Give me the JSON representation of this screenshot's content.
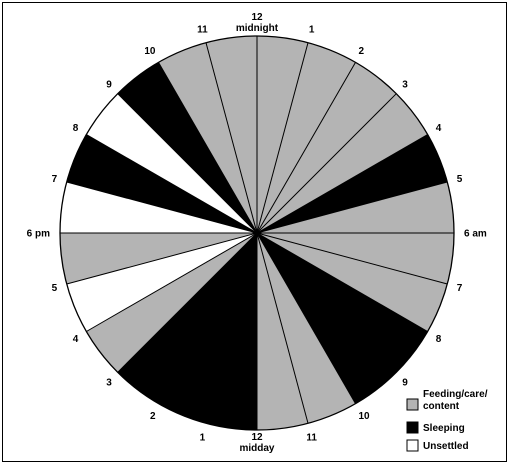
{
  "chart_data": {
    "type": "pie",
    "description_text": {},
    "clock_labels": [
      [
        "12",
        "midnight"
      ],
      [
        "1"
      ],
      [
        "2"
      ],
      [
        "3"
      ],
      [
        "4"
      ],
      [
        "5"
      ],
      [
        "6 am"
      ],
      [
        "7"
      ],
      [
        "8"
      ],
      [
        "9"
      ],
      [
        "10"
      ],
      [
        "11"
      ],
      [
        "12",
        "midday"
      ],
      [
        "1"
      ],
      [
        "2"
      ],
      [
        "3"
      ],
      [
        "4"
      ],
      [
        "5"
      ],
      [
        "6 pm"
      ],
      [
        "7"
      ],
      [
        "8"
      ],
      [
        "9"
      ],
      [
        "10"
      ],
      [
        "11"
      ]
    ],
    "segments": [
      {
        "hour_start": 0,
        "hour_end": 1,
        "state": "feeding"
      },
      {
        "hour_start": 1,
        "hour_end": 2,
        "state": "feeding"
      },
      {
        "hour_start": 2,
        "hour_end": 3,
        "state": "feeding"
      },
      {
        "hour_start": 3,
        "hour_end": 4,
        "state": "feeding"
      },
      {
        "hour_start": 4,
        "hour_end": 5,
        "state": "sleeping"
      },
      {
        "hour_start": 5,
        "hour_end": 6,
        "state": "feeding"
      },
      {
        "hour_start": 6,
        "hour_end": 7,
        "state": "feeding"
      },
      {
        "hour_start": 7,
        "hour_end": 8,
        "state": "feeding"
      },
      {
        "hour_start": 8,
        "hour_end": 10,
        "state": "sleeping"
      },
      {
        "hour_start": 10,
        "hour_end": 11,
        "state": "feeding"
      },
      {
        "hour_start": 11,
        "hour_end": 12,
        "state": "feeding"
      },
      {
        "hour_start": 12,
        "hour_end": 15,
        "state": "sleeping"
      },
      {
        "hour_start": 15,
        "hour_end": 16,
        "state": "feeding"
      },
      {
        "hour_start": 16,
        "hour_end": 17,
        "state": "unsettled"
      },
      {
        "hour_start": 17,
        "hour_end": 18,
        "state": "feeding"
      },
      {
        "hour_start": 18,
        "hour_end": 19,
        "state": "unsettled"
      },
      {
        "hour_start": 19,
        "hour_end": 20,
        "state": "sleeping"
      },
      {
        "hour_start": 20,
        "hour_end": 21,
        "state": "unsettled"
      },
      {
        "hour_start": 21,
        "hour_end": 22,
        "state": "sleeping"
      },
      {
        "hour_start": 22,
        "hour_end": 23,
        "state": "feeding"
      },
      {
        "hour_start": 23,
        "hour_end": 24,
        "state": "feeding"
      }
    ],
    "legend": [
      {
        "state": "feeding",
        "label_lines": [
          "Feeding/care/",
          "content"
        ]
      },
      {
        "state": "sleeping",
        "label_lines": [
          "Sleeping"
        ]
      },
      {
        "state": "unsettled",
        "label_lines": [
          "Unsettled"
        ]
      }
    ],
    "colors": {
      "feeding": "#b4b4b4",
      "sleeping": "#000000",
      "unsettled": "#ffffff",
      "outline": "#000000"
    }
  }
}
